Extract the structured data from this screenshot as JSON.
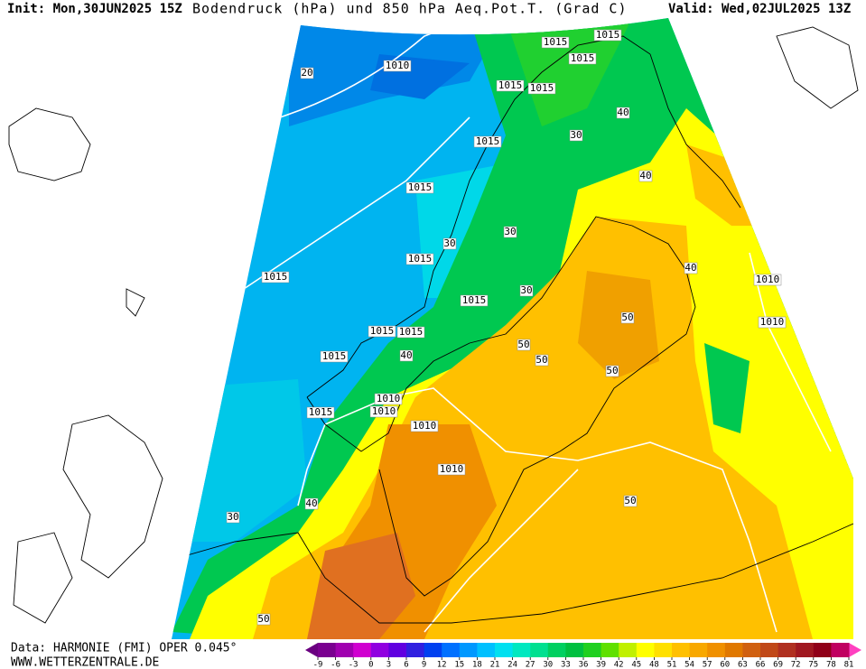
{
  "header": {
    "init": "Init: Mon,30JUN2025 15Z",
    "title": "Bodendruck (hPa) und 850 hPa Aeq.Pot.T. (Grad C)",
    "valid": "Valid: Wed,02JUL2025 13Z"
  },
  "footer": {
    "data": "Data: HARMONIE (FMI) OPER 0.045°",
    "website": "WWW.WETTERZENTRALE.DE"
  },
  "map_labels": [
    "1010",
    "1015",
    "1015",
    "1015",
    "1015",
    "1015",
    "1015",
    "1015",
    "1015",
    "1015",
    "1010",
    "1010",
    "1010",
    "1015",
    "1015",
    "1015",
    "1010",
    "1015",
    "1015",
    "1010",
    "1010",
    "20",
    "30",
    "30",
    "30",
    "30",
    "40",
    "40",
    "40",
    "40",
    "50",
    "50",
    "50",
    "50",
    "50",
    "50",
    "30",
    "40"
  ],
  "colorbar": {
    "ticks": [
      -9,
      -6,
      -3,
      0,
      3,
      6,
      9,
      12,
      15,
      18,
      21,
      24,
      27,
      30,
      33,
      36,
      39,
      42,
      45,
      48,
      51,
      54,
      57,
      60,
      63,
      66,
      69,
      72,
      75,
      78,
      81
    ],
    "colors": [
      "#7a0090",
      "#a000b0",
      "#d000d0",
      "#9000e0",
      "#6000e0",
      "#3020e0",
      "#0040f0",
      "#0070ff",
      "#0098ff",
      "#00c0ff",
      "#00e0f0",
      "#00e8c0",
      "#00e090",
      "#00d060",
      "#00c040",
      "#20d020",
      "#60e000",
      "#c0f000",
      "#ffff00",
      "#ffe000",
      "#ffc000",
      "#f8a800",
      "#f09000",
      "#e07800",
      "#d06010",
      "#c04818",
      "#b03020",
      "#a01820",
      "#900018",
      "#c00060"
    ],
    "under_color": "#6a0080",
    "over_color": "#ff40c0"
  }
}
